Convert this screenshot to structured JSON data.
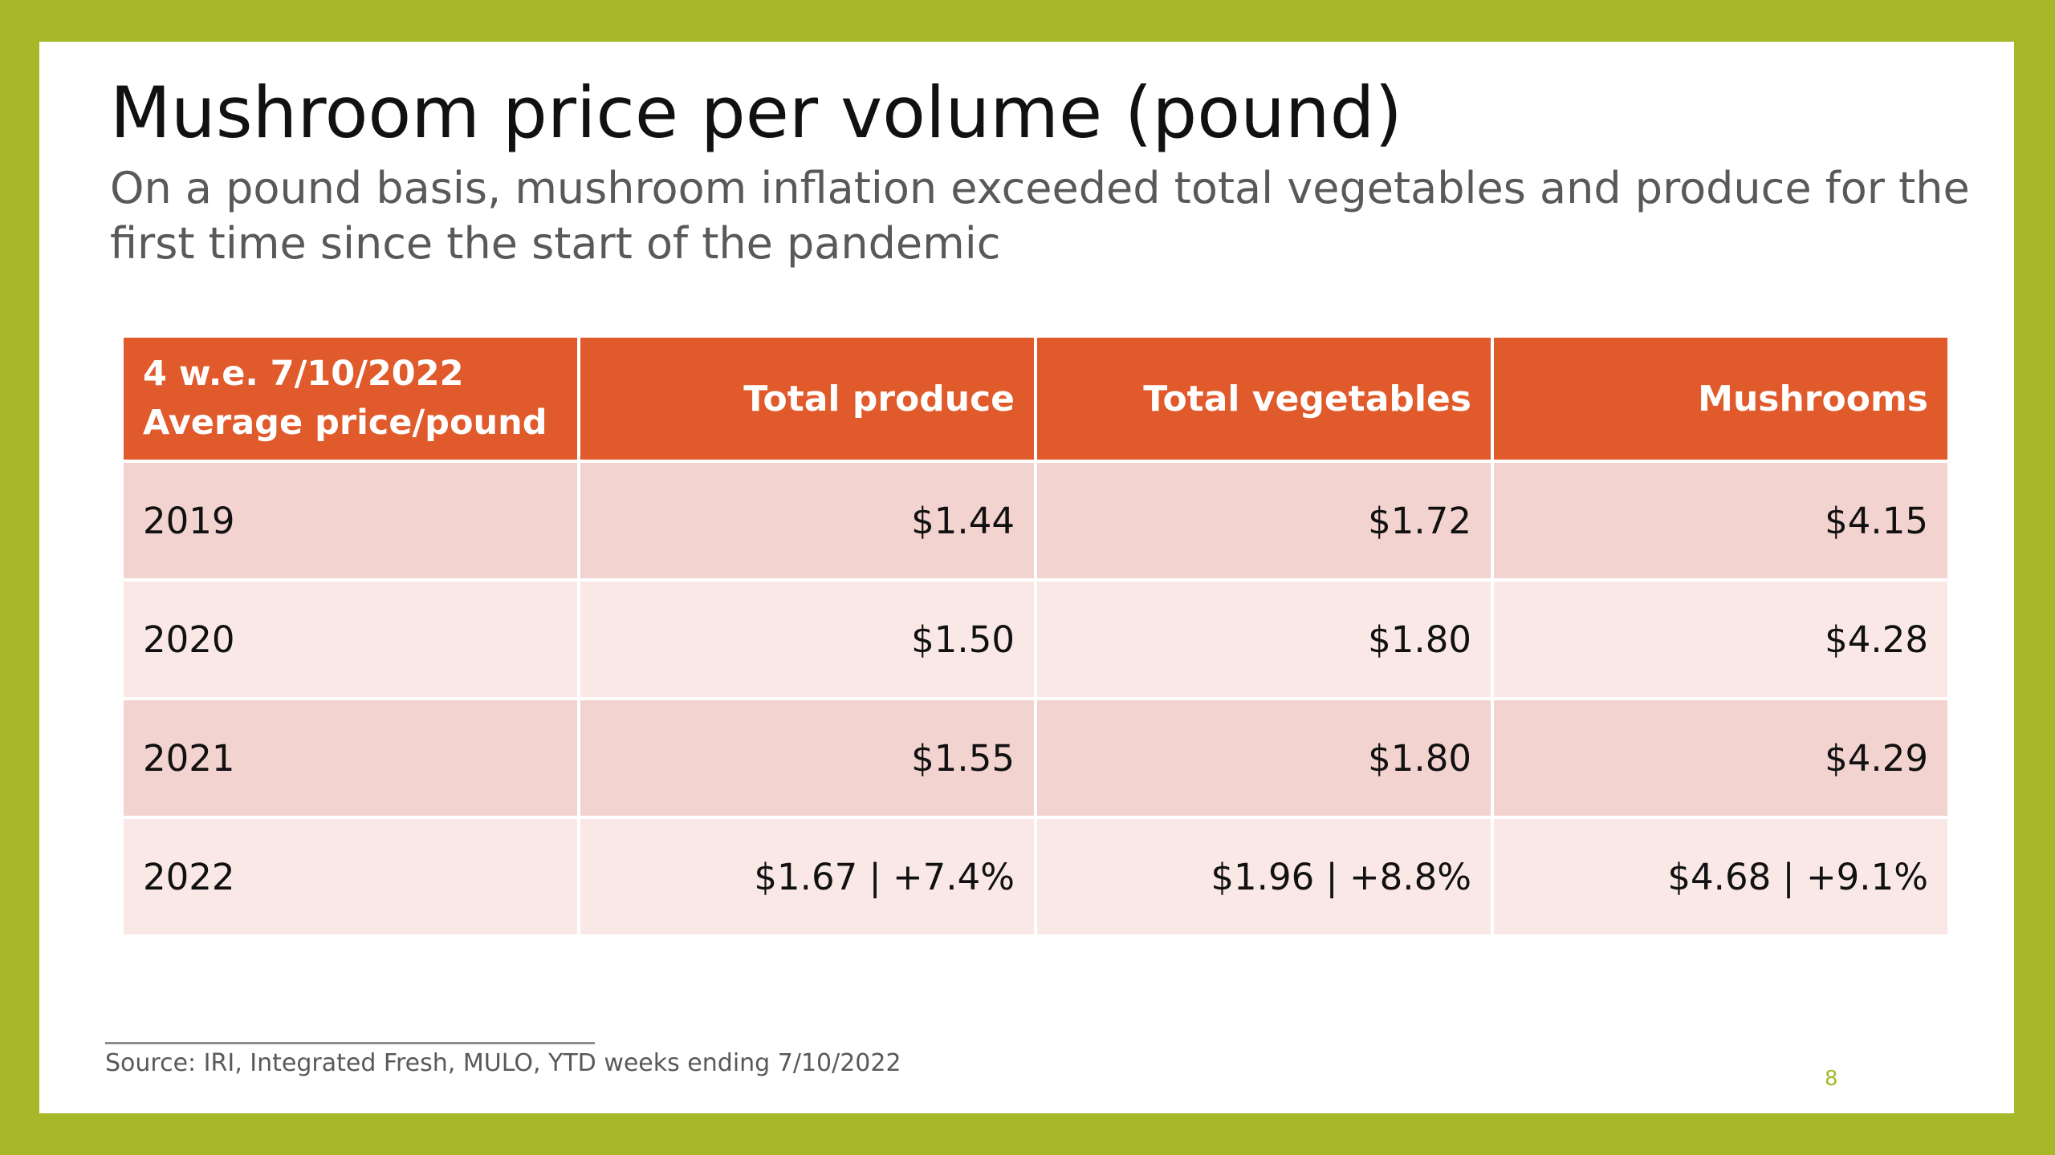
{
  "slide": {
    "title": "Mushroom price per volume (pound)",
    "subtitle": "On a pound basis, mushroom inflation exceeded total vegetables and produce for the first time since the start of the pandemic",
    "source": "Source: IRI, Integrated Fresh, MULO, YTD weeks ending 7/10/2022",
    "page_number": "8"
  },
  "table": {
    "stub_header": [
      "4 w.e. 7/10/2022",
      "Average price/pound"
    ],
    "columns": [
      "Total produce",
      "Total vegetables",
      "Mushrooms"
    ],
    "rows": [
      [
        "2019",
        "$1.44",
        "$1.72",
        "$4.15"
      ],
      [
        "2020",
        "$1.50",
        "$1.80",
        "$4.28"
      ],
      [
        "2021",
        "$1.55",
        "$1.80",
        "$4.29"
      ],
      [
        "2022",
        "$1.67 | +7.4%",
        "$1.96 | +8.8%",
        "$4.68 | +9.1%"
      ]
    ]
  },
  "colors": {
    "frame": "#a6b827",
    "header": "#e05a2b",
    "row_dark": "#f3d3cf",
    "row_light": "#f9e8e6"
  }
}
